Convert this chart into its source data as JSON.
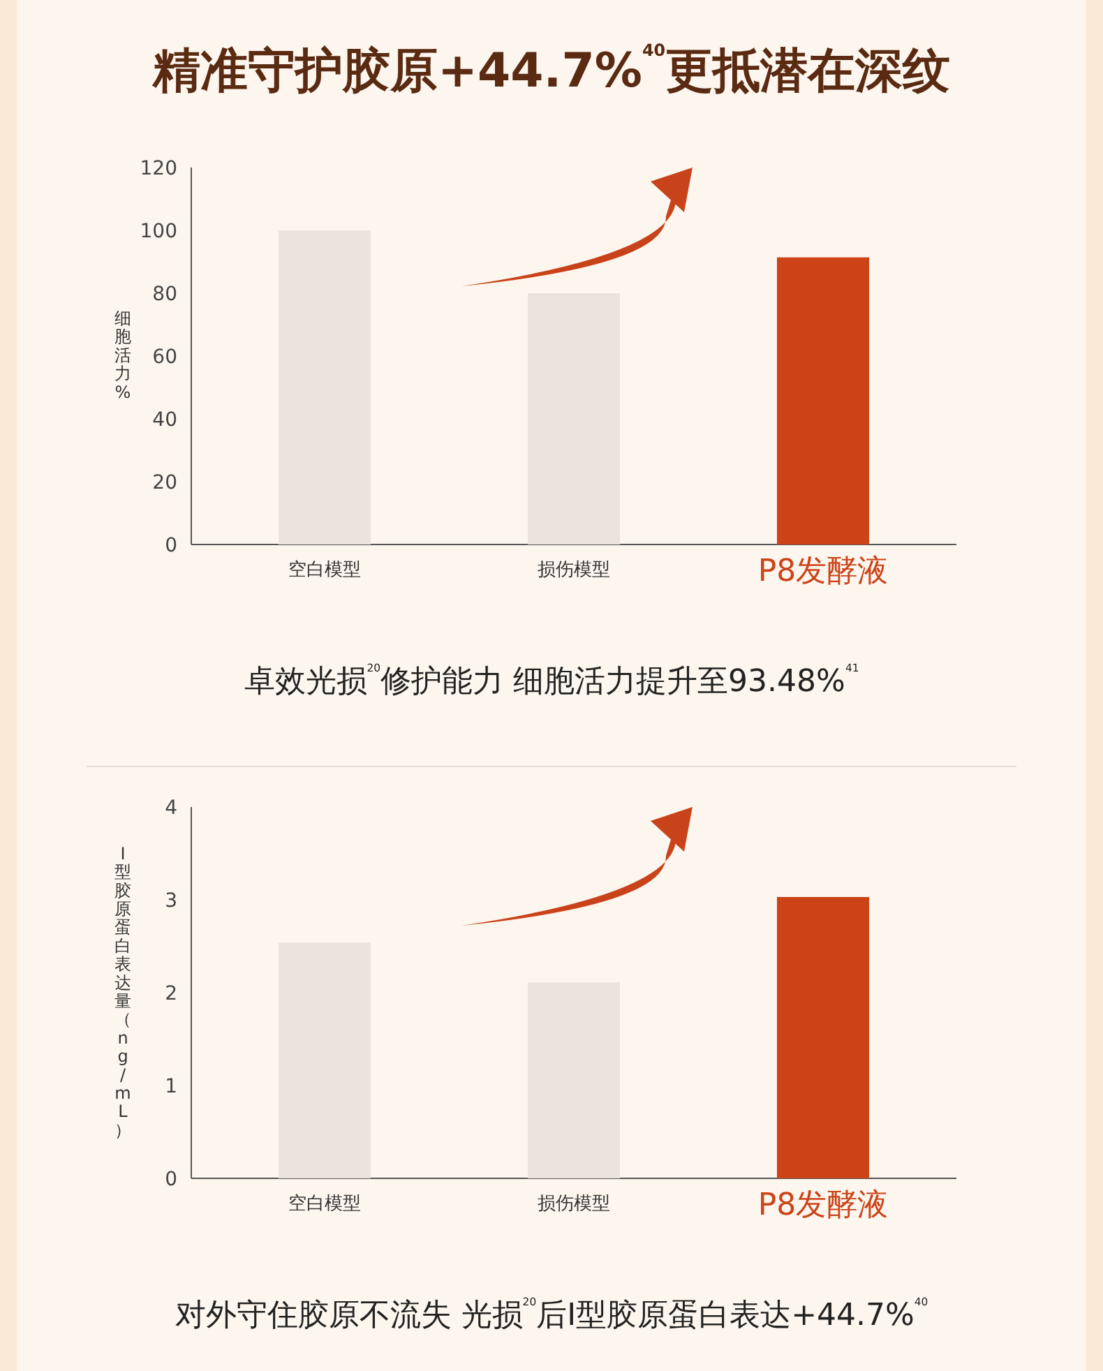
{
  "chart_data": [
    {
      "type": "bar",
      "title": "精准守护胶原+44.7%$^{40}$更抵潜在深纹",
      "ylabel": "细胞活力%",
      "categories": [
        "空白模型",
        "损伤模型",
        "P8发酵液"
      ],
      "values": [
        100,
        80,
        91.4
      ],
      "colors": [
        "#ebe3dc",
        "#ebe3dc",
        "#cc4318"
      ],
      "ylim": [
        0,
        120
      ],
      "yticks": [
        0,
        20,
        40,
        60,
        80,
        100,
        120
      ],
      "annotations": [
        "卓效光损$^{20}$修护能力 细胞活力提升至93.48%$^{41}$"
      ]
    },
    {
      "type": "bar",
      "ylabel": "I型胶原蛋白表达量（ng/mL）",
      "categories": [
        "空白模型",
        "损伤模型",
        "P8发酵液"
      ],
      "values": [
        2.54,
        2.11,
        3.03
      ],
      "colors": [
        "#ebe3dc",
        "#ebe3dc",
        "#cc4318"
      ],
      "ylim": [
        0,
        4
      ],
      "yticks": [
        0,
        1,
        2,
        3,
        4
      ],
      "annotations": [
        "对外守住胶原不流失 光损$^{20}$后I型胶原蛋白表达+44.7%$^{40}$"
      ]
    }
  ]
}
